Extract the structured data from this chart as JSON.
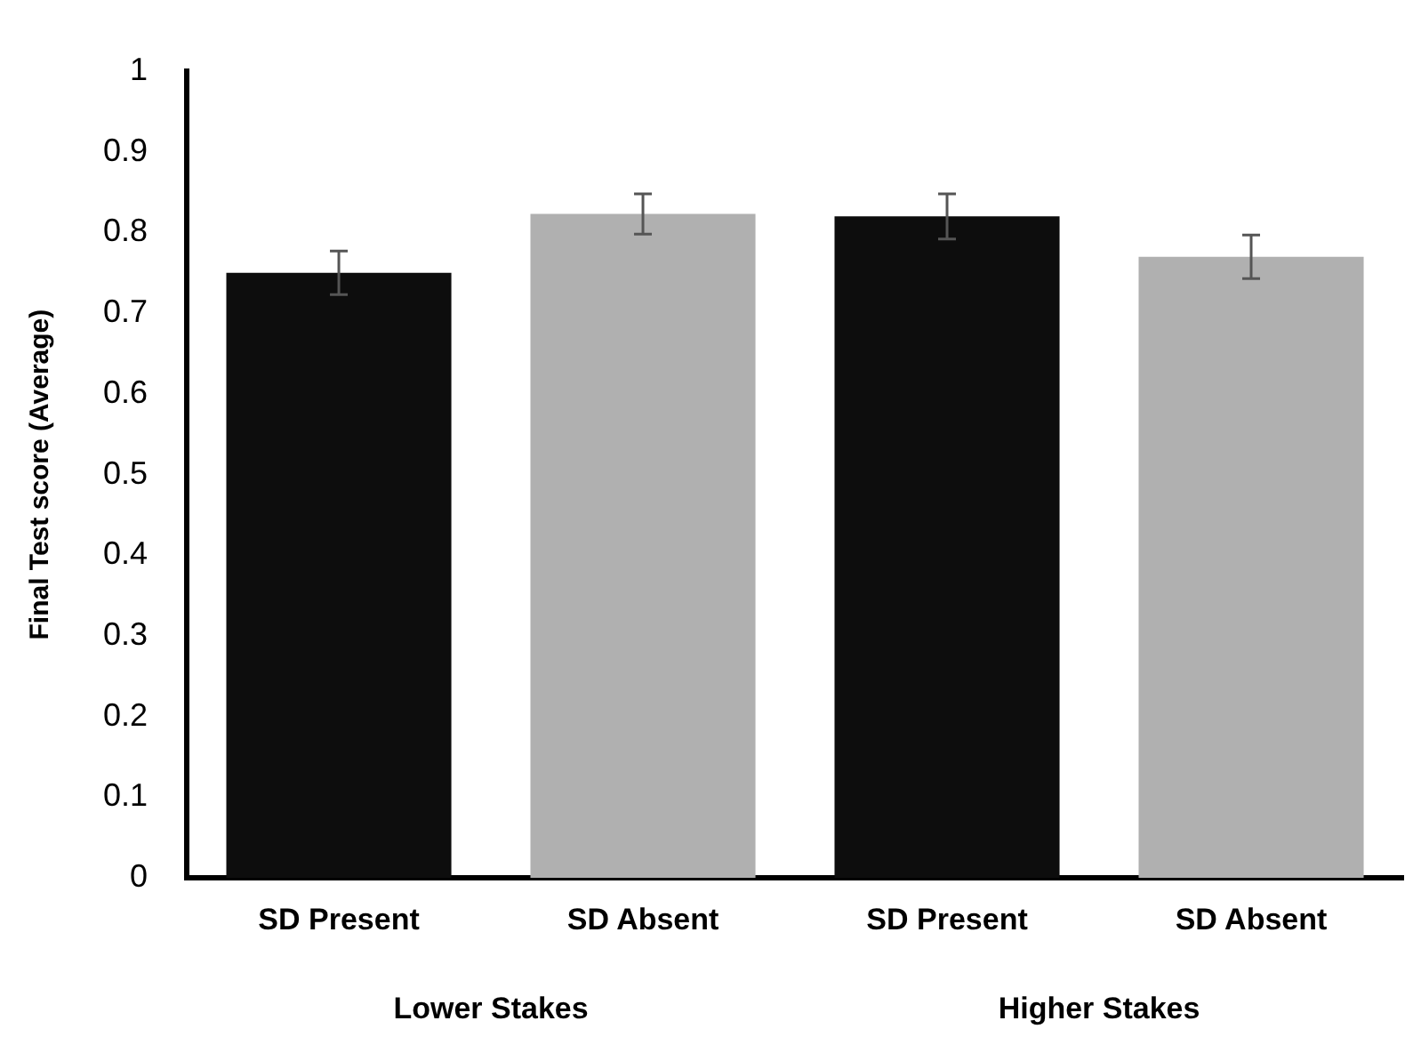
{
  "chart_data": {
    "type": "bar",
    "ylabel": "Final Test score (Average)",
    "categories": [
      "SD Present",
      "SD Absent",
      "SD Present",
      "SD Absent"
    ],
    "values": [
      0.75,
      0.823,
      0.82,
      0.77
    ],
    "errors": [
      0.027,
      0.025,
      0.028,
      0.027
    ],
    "colors": [
      "#0d0d0d",
      "#b0b0b0",
      "#0d0d0d",
      "#b0b0b0"
    ],
    "ylim": [
      0,
      1
    ],
    "yticks": [
      0,
      0.1,
      0.2,
      0.3,
      0.4,
      0.5,
      0.6,
      0.7,
      0.8,
      0.9,
      1
    ],
    "annotations": [
      "Lower Stakes",
      "Higher Stakes"
    ],
    "grid": false,
    "legend": false
  }
}
